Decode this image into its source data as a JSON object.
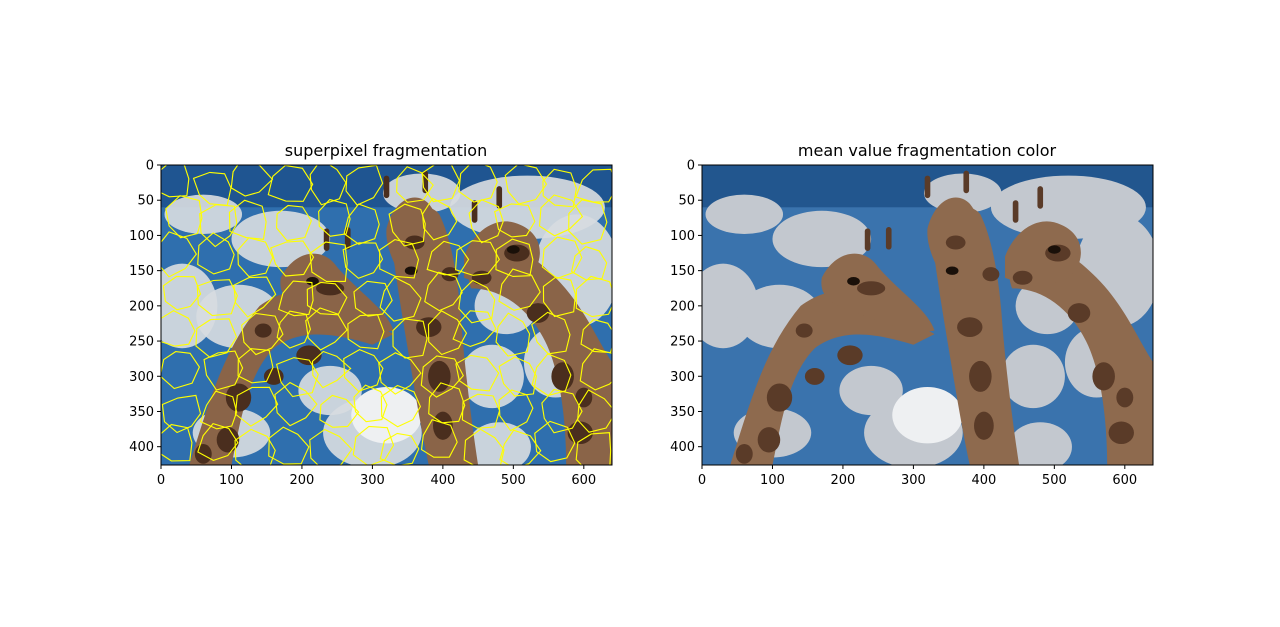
{
  "figure": {
    "background": "#ffffff"
  },
  "chart_data": [
    {
      "type": "image",
      "title": "superpixel fragmentation",
      "xlabel": "",
      "ylabel": "",
      "image_size": [
        640,
        426
      ],
      "xlim": [
        0,
        640
      ],
      "ylim": [
        426,
        0
      ],
      "xticks": [
        0,
        100,
        200,
        300,
        400,
        500,
        600
      ],
      "yticks": [
        0,
        50,
        100,
        150,
        200,
        250,
        300,
        350,
        400
      ],
      "grid": false,
      "content": "photo of three giraffes against blue sky with white clouds, yellow superpixel boundaries overlaid",
      "colors": {
        "sky": "#2f6fae",
        "cloud": "#d7dbe0",
        "giraffe": "#8a6448",
        "spot": "#4a2e1e",
        "boundary": "#ffff00"
      }
    },
    {
      "type": "image",
      "title": "mean value fragmentation color",
      "xlabel": "",
      "ylabel": "",
      "image_size": [
        640,
        426
      ],
      "xlim": [
        0,
        640
      ],
      "ylim": [
        426,
        0
      ],
      "xticks": [
        0,
        100,
        200,
        300,
        400,
        500,
        600
      ],
      "yticks": [
        0,
        50,
        100,
        150,
        200,
        250,
        300,
        350,
        400
      ],
      "grid": false,
      "content": "same photo with each superpixel filled by its mean color",
      "colors": {
        "sky": "#3a73ad",
        "cloud": "#c3c8cf",
        "giraffe": "#8e6a4e",
        "spot": "#5a3b28"
      }
    }
  ]
}
